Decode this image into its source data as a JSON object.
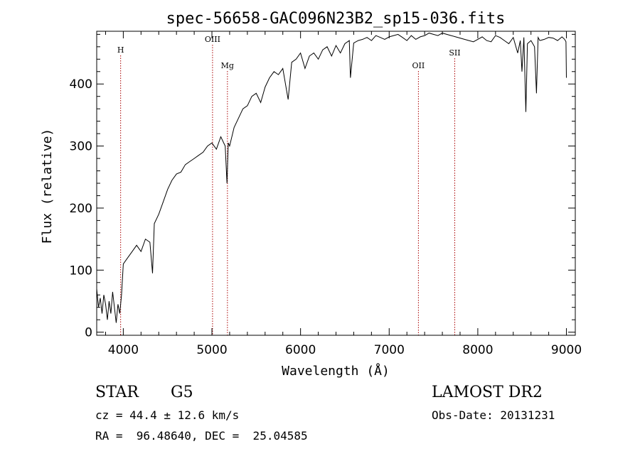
{
  "chart_data": {
    "type": "line",
    "title": "spec-56658-GAC096N23B2_sp15-036.fits",
    "xlabel": "Wavelength (Å)",
    "ylabel": "Flux (relative)",
    "xlim": [
      3700,
      9100
    ],
    "ylim": [
      -5,
      485
    ],
    "xticks": [
      4000,
      5000,
      6000,
      7000,
      8000,
      9000
    ],
    "yticks": [
      0,
      100,
      200,
      300,
      400
    ],
    "grid": false,
    "series": [
      {
        "color": "#000000",
        "x": [
          3700,
          3720,
          3740,
          3760,
          3780,
          3800,
          3820,
          3840,
          3860,
          3880,
          3900,
          3920,
          3940,
          3960,
          3980,
          4000,
          4050,
          4100,
          4150,
          4200,
          4250,
          4300,
          4330,
          4350,
          4400,
          4450,
          4500,
          4550,
          4600,
          4650,
          4700,
          4750,
          4800,
          4850,
          4900,
          4950,
          5000,
          5050,
          5100,
          5150,
          5170,
          5184,
          5200,
          5250,
          5300,
          5350,
          5400,
          5450,
          5500,
          5550,
          5600,
          5650,
          5700,
          5750,
          5800,
          5860,
          5900,
          5950,
          6000,
          6050,
          6100,
          6150,
          6200,
          6250,
          6300,
          6350,
          6400,
          6450,
          6500,
          6550,
          6563,
          6600,
          6650,
          6700,
          6750,
          6800,
          6850,
          6900,
          6950,
          7000,
          7050,
          7100,
          7150,
          7200,
          7250,
          7300,
          7350,
          7400,
          7450,
          7500,
          7550,
          7600,
          7650,
          7700,
          7750,
          7800,
          7850,
          7900,
          7950,
          8000,
          8050,
          8100,
          8150,
          8200,
          8250,
          8300,
          8350,
          8400,
          8450,
          8480,
          8498,
          8520,
          8542,
          8560,
          8600,
          8640,
          8662,
          8680,
          8700,
          8750,
          8800,
          8850,
          8900,
          8950,
          8980,
          8995,
          9000
        ],
        "y": [
          70,
          40,
          55,
          30,
          60,
          45,
          20,
          50,
          30,
          65,
          40,
          15,
          45,
          30,
          60,
          110,
          120,
          130,
          140,
          130,
          150,
          145,
          95,
          175,
          190,
          210,
          230,
          245,
          255,
          258,
          270,
          275,
          280,
          285,
          290,
          300,
          305,
          295,
          315,
          300,
          240,
          305,
          300,
          330,
          345,
          360,
          365,
          380,
          385,
          370,
          395,
          410,
          420,
          415,
          425,
          375,
          435,
          440,
          450,
          425,
          445,
          450,
          440,
          455,
          460,
          445,
          462,
          450,
          465,
          470,
          410,
          466,
          470,
          472,
          475,
          470,
          478,
          475,
          472,
          476,
          478,
          480,
          475,
          470,
          478,
          472,
          476,
          478,
          482,
          480,
          478,
          482,
          480,
          478,
          476,
          474,
          472,
          470,
          468,
          472,
          476,
          470,
          468,
          478,
          475,
          470,
          465,
          475,
          450,
          470,
          420,
          475,
          355,
          465,
          470,
          460,
          385,
          475,
          470,
          472,
          475,
          474,
          470,
          476,
          472,
          468,
          410
        ]
      }
    ],
    "lines": [
      {
        "label": "H",
        "x": 3970
      },
      {
        "label": "OIII",
        "x": 5007
      },
      {
        "label": "Mg",
        "x": 5175
      },
      {
        "label": "OII",
        "x": 7330
      },
      {
        "label": "SII",
        "x": 7740
      }
    ]
  },
  "info": {
    "object_class": "STAR",
    "subclass": "G5",
    "survey": "LAMOST DR2",
    "cz": "cz = 44.4 ± 12.6 km/s",
    "obs_date": "Obs-Date: 20131231",
    "coords": "RA =  96.48640, DEC =  25.04585"
  }
}
